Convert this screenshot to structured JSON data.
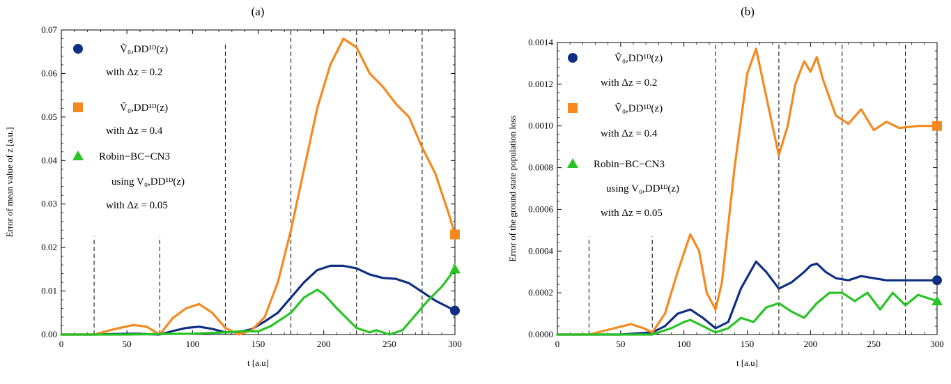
{
  "chart_data": [
    {
      "type": "line",
      "panel_label": "(a)",
      "xlabel": "t  [a.u]",
      "ylabel": "Error  of  mean value  of  z   [a.u.]",
      "xlim": [
        0,
        300
      ],
      "ylim": [
        0,
        0.07
      ],
      "x_ticks": [
        0,
        50,
        100,
        150,
        200,
        250,
        300
      ],
      "y_ticks": [
        "0.00",
        "0.01",
        "0.02",
        "0.03",
        "0.04",
        "0.05",
        "0.06",
        "0.07"
      ],
      "vlines": [
        {
          "x": 25,
          "y_top": 0.0225
        },
        {
          "x": 75,
          "y_top": 0.0225
        },
        {
          "x": 125,
          "y_top": 0.067
        },
        {
          "x": 175,
          "y_top": 0.07
        },
        {
          "x": 225,
          "y_top": 0.07
        },
        {
          "x": 275,
          "y_top": 0.07
        }
      ],
      "series": [
        {
          "color": "#0f2f83",
          "marker": "circle",
          "x": [
            0,
            25,
            40,
            55,
            65,
            75,
            85,
            95,
            105,
            115,
            125,
            135,
            145,
            155,
            165,
            175,
            185,
            195,
            205,
            215,
            225,
            235,
            245,
            255,
            265,
            275,
            285,
            300
          ],
          "y": [
            0,
            0,
            0.0001,
            0.0002,
            0.0001,
            0,
            0.0008,
            0.0015,
            0.0018,
            0.0013,
            0.0005,
            0.0006,
            0.0012,
            0.003,
            0.005,
            0.0085,
            0.012,
            0.0148,
            0.0158,
            0.0158,
            0.0152,
            0.0138,
            0.013,
            0.0128,
            0.0118,
            0.0098,
            0.0078,
            0.0055
          ]
        },
        {
          "color": "#f5891f",
          "marker": "square",
          "x": [
            0,
            25,
            40,
            55,
            65,
            75,
            85,
            95,
            105,
            115,
            125,
            135,
            145,
            155,
            165,
            175,
            185,
            195,
            205,
            215,
            225,
            235,
            245,
            255,
            265,
            275,
            285,
            295,
            300
          ],
          "y": [
            0,
            0,
            0.0012,
            0.0022,
            0.0018,
            0,
            0.0038,
            0.006,
            0.007,
            0.005,
            0.0015,
            0,
            0.001,
            0.004,
            0.012,
            0.024,
            0.038,
            0.052,
            0.062,
            0.068,
            0.066,
            0.06,
            0.057,
            0.053,
            0.05,
            0.043,
            0.037,
            0.028,
            0.023
          ]
        },
        {
          "color": "#27c424",
          "marker": "triangle",
          "x": [
            0,
            50,
            100,
            125,
            140,
            150,
            160,
            175,
            185,
            195,
            200,
            210,
            220,
            225,
            235,
            240,
            250,
            260,
            270,
            280,
            290,
            300
          ],
          "y": [
            0,
            0,
            0.0002,
            0.0005,
            0.0008,
            0.0007,
            0.002,
            0.005,
            0.0085,
            0.0103,
            0.0093,
            0.006,
            0.003,
            0.0015,
            0.0005,
            0.001,
            0,
            0.001,
            0.0045,
            0.008,
            0.011,
            0.015
          ]
        }
      ],
      "legend": {
        "position": "top-left",
        "entries": [
          {
            "marker": "circle",
            "lines": [
              "Ṽ₀,DD¹ᴰ(z)",
              "with  Δz = 0.2"
            ]
          },
          {
            "marker": "square",
            "lines": [
              "Ṽ₀,DD¹ᴰ(z)",
              "with  Δz = 0.4"
            ]
          },
          {
            "marker": "triangle",
            "lines": [
              "Robin−BC−CN3",
              "using V₀,DD¹ᴰ(z)",
              "with  Δz = 0.05"
            ]
          }
        ]
      }
    },
    {
      "type": "line",
      "panel_label": "(b)",
      "xlabel": "t  [a.u]",
      "ylabel": "Error  of  the  ground  state  population  loss",
      "xlim": [
        0,
        300
      ],
      "ylim": [
        0,
        0.0014
      ],
      "x_ticks": [
        0,
        50,
        100,
        150,
        200,
        250,
        300
      ],
      "y_ticks": [
        "0.0000",
        "0.0002",
        "0.0004",
        "0.0006",
        "0.0008",
        "0.0010",
        "0.0012",
        "0.0014"
      ],
      "vlines": [
        {
          "x": 25,
          "y_top": 0.00047
        },
        {
          "x": 75,
          "y_top": 0.00047
        },
        {
          "x": 125,
          "y_top": 0.0014
        },
        {
          "x": 175,
          "y_top": 0.0014
        },
        {
          "x": 225,
          "y_top": 0.0014
        },
        {
          "x": 275,
          "y_top": 0.0014
        }
      ],
      "series": [
        {
          "color": "#0f2f83",
          "marker": "circle",
          "x": [
            0,
            50,
            75,
            85,
            95,
            105,
            115,
            125,
            135,
            145,
            157,
            165,
            175,
            185,
            195,
            200,
            205,
            212,
            220,
            230,
            240,
            250,
            260,
            275,
            300
          ],
          "y": [
            0,
            0,
            1e-05,
            4e-05,
            0.0001,
            0.00012,
            8e-05,
            3e-05,
            6e-05,
            0.00022,
            0.00035,
            0.0003,
            0.00022,
            0.00025,
            0.0003,
            0.00033,
            0.00034,
            0.0003,
            0.00027,
            0.00026,
            0.00028,
            0.00027,
            0.00026,
            0.00026,
            0.00026
          ]
        },
        {
          "color": "#f5891f",
          "marker": "square",
          "x": [
            0,
            25,
            45,
            58,
            68,
            75,
            85,
            95,
            105,
            112,
            118,
            125,
            130,
            140,
            150,
            157,
            163,
            170,
            175,
            182,
            188,
            195,
            200,
            205,
            210,
            220,
            230,
            240,
            250,
            260,
            270,
            285,
            300
          ],
          "y": [
            0,
            0,
            3e-05,
            5e-05,
            3e-05,
            1e-05,
            0.0001,
            0.0003,
            0.00048,
            0.0004,
            0.0002,
            0.00012,
            0.00025,
            0.0008,
            0.00125,
            0.00137,
            0.0012,
            0.001,
            0.00086,
            0.001,
            0.0012,
            0.00131,
            0.00126,
            0.00133,
            0.00122,
            0.00105,
            0.00101,
            0.00108,
            0.00098,
            0.00102,
            0.00099,
            0.001,
            0.001
          ]
        },
        {
          "color": "#27c424",
          "marker": "triangle",
          "x": [
            0,
            75,
            90,
            100,
            105,
            115,
            125,
            135,
            145,
            155,
            165,
            175,
            185,
            195,
            205,
            215,
            225,
            235,
            245,
            255,
            265,
            275,
            285,
            300
          ],
          "y": [
            0,
            0,
            3e-05,
            6e-05,
            7e-05,
            4e-05,
            1e-05,
            3e-05,
            8e-05,
            6e-05,
            0.00013,
            0.00015,
            0.00011,
            8e-05,
            0.00015,
            0.0002,
            0.0002,
            0.00016,
            0.0002,
            0.00012,
            0.0002,
            0.00014,
            0.00019,
            0.00016
          ]
        }
      ],
      "legend": {
        "position": "top-left",
        "entries": [
          {
            "marker": "circle",
            "lines": [
              "Ṽ₀,DD¹ᴰ(z)",
              "with  Δz = 0.2"
            ]
          },
          {
            "marker": "square",
            "lines": [
              "Ṽ₀,DD¹ᴰ(z)",
              "with  Δz = 0.4"
            ]
          },
          {
            "marker": "triangle",
            "lines": [
              "Robin−BC−CN3",
              "using V₀,DD¹ᴰ(z)",
              "with  Δz = 0.05"
            ]
          }
        ]
      }
    }
  ]
}
